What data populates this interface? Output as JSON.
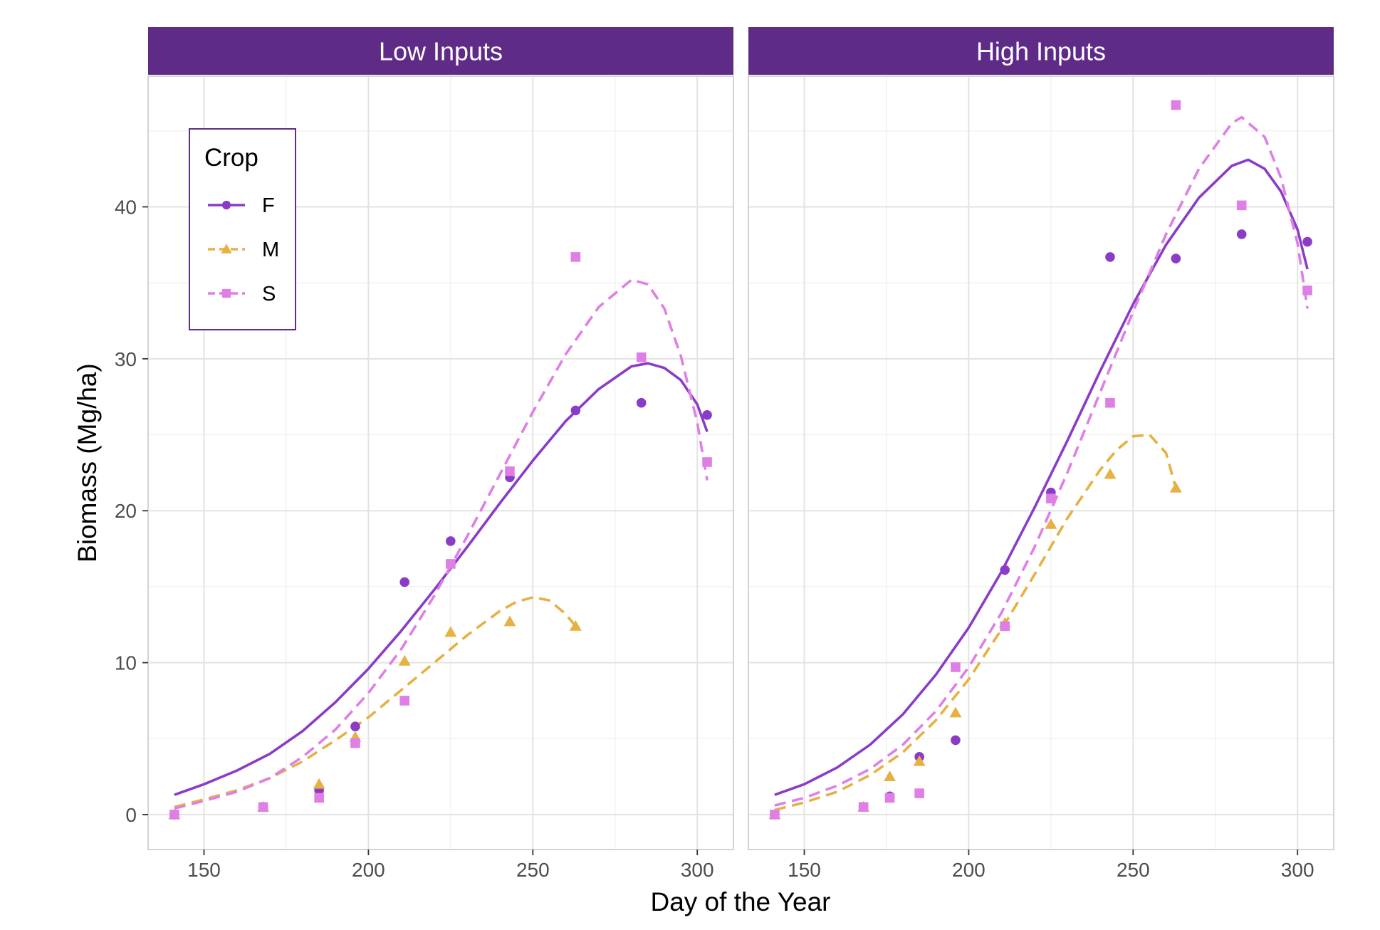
{
  "chart_data": {
    "type": "scatter",
    "xlabel": "Day of the Year",
    "ylabel": "Biomass (Mg/ha)",
    "xlim": [
      133,
      311
    ],
    "ylim": [
      -2.3,
      48.6
    ],
    "x_ticks": [
      150,
      200,
      250,
      300
    ],
    "y_ticks": [
      0,
      10,
      20,
      30,
      40
    ],
    "grid": true,
    "legend": {
      "title": "Crop",
      "position": "top-left",
      "entries": [
        {
          "label": "F",
          "color": "#8b3cc6",
          "shape": "circle",
          "line": "solid"
        },
        {
          "label": "M",
          "color": "#e6b043",
          "shape": "triangle",
          "line": "dashed"
        },
        {
          "label": "S",
          "color": "#df7fe6",
          "shape": "square",
          "line": "dashed"
        }
      ]
    },
    "colors": {
      "strip": "#5e2b86",
      "F": "#8b3cc6",
      "M": "#e6b043",
      "S": "#df7fe6"
    },
    "panels": [
      {
        "title": "Low Inputs",
        "series": [
          {
            "name": "F",
            "points": [
              [
                141,
                0
              ],
              [
                168,
                0.5
              ],
              [
                185,
                1.6
              ],
              [
                196,
                5.8
              ],
              [
                211,
                15.3
              ],
              [
                225,
                18.0
              ],
              [
                243,
                22.2
              ],
              [
                263,
                26.6
              ],
              [
                283,
                27.1
              ],
              [
                303,
                26.3
              ]
            ],
            "fit": [
              [
                141,
                1.3
              ],
              [
                150,
                2.0
              ],
              [
                160,
                2.9
              ],
              [
                170,
                4.0
              ],
              [
                180,
                5.5
              ],
              [
                190,
                7.4
              ],
              [
                200,
                9.6
              ],
              [
                210,
                12.1
              ],
              [
                220,
                14.8
              ],
              [
                230,
                17.6
              ],
              [
                240,
                20.5
              ],
              [
                250,
                23.3
              ],
              [
                260,
                25.9
              ],
              [
                270,
                28.0
              ],
              [
                280,
                29.5
              ],
              [
                285,
                29.7
              ],
              [
                290,
                29.4
              ],
              [
                295,
                28.6
              ],
              [
                300,
                27.0
              ],
              [
                303,
                25.2
              ]
            ]
          },
          {
            "name": "M",
            "points": [
              [
                141,
                0
              ],
              [
                168,
                0.5
              ],
              [
                185,
                2.0
              ],
              [
                196,
                5.1
              ],
              [
                211,
                10.1
              ],
              [
                225,
                12.0
              ],
              [
                243,
                12.7
              ],
              [
                263,
                12.4
              ]
            ],
            "fit": [
              [
                141,
                0.5
              ],
              [
                150,
                1.0
              ],
              [
                160,
                1.6
              ],
              [
                170,
                2.4
              ],
              [
                180,
                3.5
              ],
              [
                190,
                4.9
              ],
              [
                200,
                6.4
              ],
              [
                210,
                8.2
              ],
              [
                220,
                10.0
              ],
              [
                230,
                11.8
              ],
              [
                240,
                13.4
              ],
              [
                245,
                14.0
              ],
              [
                250,
                14.3
              ],
              [
                255,
                14.1
              ],
              [
                260,
                13.2
              ],
              [
                263,
                12.4
              ]
            ]
          },
          {
            "name": "S",
            "points": [
              [
                141,
                0
              ],
              [
                168,
                0.5
              ],
              [
                185,
                1.1
              ],
              [
                196,
                4.7
              ],
              [
                211,
                7.5
              ],
              [
                225,
                16.5
              ],
              [
                243,
                22.6
              ],
              [
                263,
                36.7
              ],
              [
                283,
                30.1
              ],
              [
                303,
                23.2
              ]
            ],
            "fit": [
              [
                141,
                0.4
              ],
              [
                150,
                0.9
              ],
              [
                160,
                1.5
              ],
              [
                170,
                2.4
              ],
              [
                180,
                3.8
              ],
              [
                190,
                5.6
              ],
              [
                200,
                8.0
              ],
              [
                210,
                10.9
              ],
              [
                220,
                14.4
              ],
              [
                230,
                18.3
              ],
              [
                240,
                22.4
              ],
              [
                250,
                26.5
              ],
              [
                260,
                30.3
              ],
              [
                270,
                33.4
              ],
              [
                280,
                35.2
              ],
              [
                285,
                34.9
              ],
              [
                290,
                33.3
              ],
              [
                295,
                30.2
              ],
              [
                300,
                25.8
              ],
              [
                303,
                22.0
              ]
            ]
          }
        ]
      },
      {
        "title": "High Inputs",
        "series": [
          {
            "name": "F",
            "points": [
              [
                141,
                0
              ],
              [
                168,
                0.5
              ],
              [
                176,
                1.2
              ],
              [
                185,
                3.8
              ],
              [
                196,
                4.9
              ],
              [
                211,
                16.1
              ],
              [
                225,
                21.2
              ],
              [
                243,
                36.7
              ],
              [
                263,
                36.6
              ],
              [
                283,
                38.2
              ],
              [
                303,
                37.7
              ]
            ],
            "fit": [
              [
                141,
                1.3
              ],
              [
                150,
                2.0
              ],
              [
                160,
                3.1
              ],
              [
                170,
                4.6
              ],
              [
                180,
                6.6
              ],
              [
                190,
                9.2
              ],
              [
                200,
                12.3
              ],
              [
                210,
                16.0
              ],
              [
                220,
                20.2
              ],
              [
                230,
                24.6
              ],
              [
                240,
                29.2
              ],
              [
                250,
                33.6
              ],
              [
                260,
                37.5
              ],
              [
                270,
                40.6
              ],
              [
                280,
                42.7
              ],
              [
                285,
                43.1
              ],
              [
                290,
                42.5
              ],
              [
                295,
                41.0
              ],
              [
                300,
                38.5
              ],
              [
                303,
                35.9
              ]
            ]
          },
          {
            "name": "M",
            "points": [
              [
                141,
                0
              ],
              [
                168,
                0.5
              ],
              [
                176,
                2.5
              ],
              [
                185,
                3.5
              ],
              [
                196,
                6.7
              ],
              [
                211,
                12.6
              ],
              [
                225,
                19.1
              ],
              [
                243,
                22.4
              ],
              [
                263,
                21.5
              ]
            ],
            "fit": [
              [
                141,
                0.3
              ],
              [
                150,
                0.8
              ],
              [
                160,
                1.5
              ],
              [
                170,
                2.6
              ],
              [
                180,
                4.1
              ],
              [
                190,
                6.2
              ],
              [
                200,
                8.9
              ],
              [
                210,
                12.2
              ],
              [
                220,
                15.8
              ],
              [
                230,
                19.5
              ],
              [
                240,
                22.7
              ],
              [
                245,
                24.0
              ],
              [
                250,
                24.9
              ],
              [
                255,
                25.0
              ],
              [
                260,
                23.8
              ],
              [
                263,
                21.5
              ]
            ]
          },
          {
            "name": "S",
            "points": [
              [
                141,
                0
              ],
              [
                168,
                0.5
              ],
              [
                176,
                1.1
              ],
              [
                185,
                1.4
              ],
              [
                196,
                9.7
              ],
              [
                211,
                12.4
              ],
              [
                225,
                20.8
              ],
              [
                243,
                27.1
              ],
              [
                263,
                46.7
              ],
              [
                283,
                40.1
              ],
              [
                303,
                34.5
              ]
            ],
            "fit": [
              [
                141,
                0.6
              ],
              [
                150,
                1.1
              ],
              [
                160,
                1.9
              ],
              [
                170,
                3.0
              ],
              [
                180,
                4.6
              ],
              [
                190,
                6.8
              ],
              [
                200,
                9.7
              ],
              [
                210,
                13.3
              ],
              [
                220,
                17.6
              ],
              [
                230,
                22.5
              ],
              [
                240,
                27.8
              ],
              [
                250,
                33.1
              ],
              [
                260,
                38.2
              ],
              [
                270,
                42.5
              ],
              [
                280,
                45.5
              ],
              [
                283,
                45.9
              ],
              [
                290,
                44.6
              ],
              [
                295,
                41.9
              ],
              [
                300,
                37.6
              ],
              [
                303,
                33.3
              ]
            ]
          }
        ]
      }
    ]
  }
}
